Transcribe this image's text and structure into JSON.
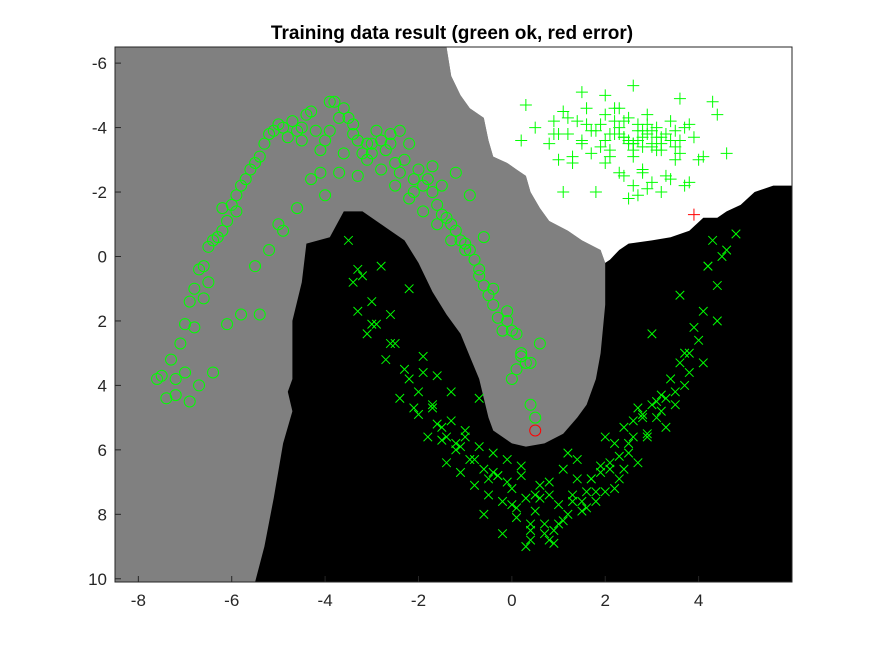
{
  "chart_data": {
    "type": "scatter",
    "title": "Training data result (green ok, red error)",
    "xlabel": "",
    "ylabel": "",
    "xlim": [
      -8.5,
      6
    ],
    "ylim": [
      10.1,
      -6.5
    ],
    "y_axis_direction": "reversed",
    "xticks": [
      -8,
      -6,
      -4,
      -2,
      0,
      2,
      4
    ],
    "yticks": [
      -6,
      -4,
      -2,
      0,
      2,
      4,
      6,
      8,
      10
    ],
    "xtick_labels": [
      "-8",
      "-6",
      "-4",
      "-2",
      "0",
      "2",
      "4"
    ],
    "ytick_labels": [
      "-6",
      "-4",
      "-2",
      "0",
      "2",
      "4",
      "6",
      "8",
      "10"
    ],
    "grid": false,
    "legend": "none",
    "background_regions": [
      {
        "label": "class circle (gray)",
        "color": "#808080",
        "polygon": [
          [
            -8.5,
            -6.5
          ],
          [
            -1.4,
            -6.5
          ],
          [
            -1.3,
            -5.6
          ],
          [
            -1.1,
            -5.0
          ],
          [
            -0.9,
            -4.6
          ],
          [
            -0.6,
            -4.3
          ],
          [
            -0.5,
            -3.6
          ],
          [
            -0.4,
            -3.1
          ],
          [
            -0.1,
            -2.9
          ],
          [
            0.1,
            -2.7
          ],
          [
            0.3,
            -2.5
          ],
          [
            0.4,
            -2.0
          ],
          [
            0.6,
            -1.5
          ],
          [
            0.8,
            -1.1
          ],
          [
            1.2,
            -0.8
          ],
          [
            1.5,
            -0.5
          ],
          [
            1.9,
            -0.2
          ],
          [
            2.0,
            0.2
          ],
          [
            2.0,
            1.5
          ],
          [
            1.9,
            3.0
          ],
          [
            1.8,
            3.8
          ],
          [
            1.6,
            4.6
          ],
          [
            1.4,
            5.0
          ],
          [
            1.1,
            5.5
          ],
          [
            0.7,
            5.8
          ],
          [
            0.3,
            5.9
          ],
          [
            0,
            5.8
          ],
          [
            -0.4,
            5.4
          ],
          [
            -0.5,
            5.0
          ],
          [
            -0.6,
            4.4
          ],
          [
            -0.7,
            3.8
          ],
          [
            -0.9,
            3.1
          ],
          [
            -1.1,
            2.4
          ],
          [
            -1.4,
            1.8
          ],
          [
            -1.7,
            1.1
          ],
          [
            -2.0,
            0.2
          ],
          [
            -2.3,
            -0.5
          ],
          [
            -2.7,
            -0.9
          ],
          [
            -3.2,
            -1.4
          ],
          [
            -3.6,
            -1.4
          ],
          [
            -3.9,
            -0.6
          ],
          [
            -4.4,
            -0.4
          ],
          [
            -4.5,
            0.8
          ],
          [
            -4.7,
            2.0
          ],
          [
            -4.7,
            3.8
          ],
          [
            -4.8,
            4.2
          ],
          [
            -4.7,
            4.8
          ],
          [
            -4.9,
            5.8
          ],
          [
            -5.1,
            7.5
          ],
          [
            -5.3,
            9.0
          ],
          [
            -5.5,
            10.1
          ],
          [
            -8.5,
            10.1
          ]
        ]
      },
      {
        "label": "class plus (white)",
        "color": "#ffffff",
        "polygon": [
          [
            -1.4,
            -6.5
          ],
          [
            6,
            -6.5
          ],
          [
            6,
            -2.2
          ],
          [
            5.6,
            -2.2
          ],
          [
            5.2,
            -2.0
          ],
          [
            4.9,
            -1.6
          ],
          [
            4.6,
            -1.4
          ],
          [
            4.4,
            -1.2
          ],
          [
            4.1,
            -1.2
          ],
          [
            3.8,
            -0.8
          ],
          [
            3.4,
            -0.6
          ],
          [
            3.0,
            -0.5
          ],
          [
            2.5,
            -0.4
          ],
          [
            2.3,
            -0.2
          ],
          [
            2.1,
            0.1
          ],
          [
            2.0,
            0.2
          ],
          [
            1.9,
            -0.2
          ],
          [
            1.5,
            -0.5
          ],
          [
            1.2,
            -0.8
          ],
          [
            0.8,
            -1.1
          ],
          [
            0.6,
            -1.5
          ],
          [
            0.4,
            -2.0
          ],
          [
            0.3,
            -2.5
          ],
          [
            0.1,
            -2.7
          ],
          [
            -0.1,
            -2.9
          ],
          [
            -0.4,
            -3.1
          ],
          [
            -0.5,
            -3.6
          ],
          [
            -0.6,
            -4.3
          ],
          [
            -0.9,
            -4.6
          ],
          [
            -1.1,
            -5.0
          ],
          [
            -1.3,
            -5.6
          ]
        ]
      }
    ],
    "default_region": {
      "label": "class cross (black)",
      "color": "#000000"
    },
    "series": [
      {
        "marker": "circle",
        "color": "#00ff00",
        "x": [
          -7.6,
          -7.5,
          -7.3,
          -7.2,
          -7.1,
          -7.0,
          -7.0,
          -6.9,
          -6.8,
          -6.8,
          -6.7,
          -6.6,
          -6.5,
          -6.5,
          -6.4,
          -6.3,
          -6.2,
          -6.1,
          -6.0,
          -5.9,
          -5.8,
          -5.7,
          -5.6,
          -5.5,
          -5.4,
          -5.3,
          -5.2,
          -5.1,
          -5.0,
          -4.9,
          -4.8,
          -4.7,
          -4.6,
          -4.5,
          -4.4,
          -4.3,
          -4.2,
          -4.1,
          -4.0,
          -3.9,
          -3.8,
          -3.7,
          -3.6,
          -3.5,
          -3.4,
          -3.3,
          -3.2,
          -3.1,
          -3.0,
          -2.9,
          -2.8,
          -2.7,
          -2.6,
          -2.5,
          -2.4,
          -2.3,
          -2.2,
          -2.1,
          -2.0,
          -1.9,
          -1.8,
          -1.7,
          -1.6,
          -1.5,
          -1.4,
          -1.3,
          -1.2,
          -1.1,
          -1.0,
          -0.9,
          -0.8,
          -0.7,
          -0.6,
          -0.5,
          -0.4,
          -0.3,
          -0.2,
          -0.1,
          0.0,
          0.1,
          0.2,
          0.3,
          0.4,
          0.6,
          -7.2,
          -6.9,
          -6.7,
          -6.4,
          -6.1,
          -5.8,
          -5.5,
          -5.2,
          -4.9,
          -4.6,
          -4.3,
          -4.0,
          -3.7,
          -3.4,
          -3.1,
          -2.8,
          -2.5,
          -2.2,
          -1.9,
          -1.6,
          -1.3,
          -1.0,
          -0.7,
          -0.4,
          -0.1,
          0.2,
          -5.4,
          -4.1,
          -3.0,
          -2.4,
          -1.5,
          -0.9,
          0.0,
          0.4,
          -6.2,
          -5.0,
          -3.6,
          -2.6,
          -1.7,
          -0.6,
          -7.4,
          -6.6,
          -5.9,
          -4.5,
          -3.9,
          -3.3,
          -2.1,
          -1.2,
          0.1,
          0.5
        ],
        "y": [
          3.8,
          3.7,
          3.2,
          3.8,
          2.7,
          3.6,
          2.1,
          1.4,
          1.0,
          2.2,
          0.4,
          0.3,
          0.8,
          -0.3,
          -0.5,
          -0.6,
          -0.8,
          -1.1,
          -1.6,
          -1.9,
          -2.2,
          -2.4,
          -2.7,
          -2.9,
          -3.1,
          -3.5,
          -3.8,
          -3.9,
          -4.1,
          -4.0,
          -3.7,
          -4.2,
          -3.9,
          -4.0,
          -4.4,
          -4.5,
          -3.9,
          -3.3,
          -3.6,
          -3.9,
          -4.8,
          -4.3,
          -4.6,
          -4.3,
          -4.1,
          -3.6,
          -3.2,
          -3.5,
          -3.2,
          -3.9,
          -3.6,
          -3.3,
          -3.5,
          -2.9,
          -2.6,
          -3.0,
          -3.5,
          -2.4,
          -2.7,
          -2.2,
          -2.4,
          -2.0,
          -1.6,
          -1.3,
          -1.2,
          -1.0,
          -0.8,
          -0.5,
          -0.4,
          -0.2,
          0.1,
          0.6,
          0.9,
          1.2,
          1.5,
          1.9,
          2.3,
          2.0,
          2.3,
          2.4,
          3.0,
          3.3,
          3.3,
          2.7,
          4.3,
          4.5,
          4.0,
          3.6,
          2.1,
          1.8,
          0.3,
          -0.2,
          -0.8,
          -1.5,
          -2.4,
          -1.9,
          -2.6,
          -3.8,
          -3.0,
          -2.7,
          -2.2,
          -1.8,
          -1.4,
          -1.0,
          -0.5,
          -0.2,
          0.4,
          1.0,
          1.7,
          3.1,
          1.8,
          -2.6,
          -3.5,
          -3.9,
          -2.2,
          -1.9,
          3.8,
          4.6,
          -1.5,
          -1.0,
          -3.2,
          -3.8,
          -2.8,
          -0.6,
          4.4,
          1.3,
          -1.4,
          -3.6,
          -4.8,
          -2.5,
          -2.0,
          -2.6,
          3.5,
          5.0
        ],
        "status": "ok"
      },
      {
        "marker": "circle",
        "color": "#ff0000",
        "x": [
          0.5
        ],
        "y": [
          5.4
        ],
        "status": "error"
      },
      {
        "marker": "plus",
        "color": "#00ff00",
        "x": [
          0.2,
          0.3,
          0.5,
          0.8,
          0.9,
          1.0,
          1.1,
          1.2,
          1.3,
          1.4,
          1.5,
          1.6,
          1.7,
          1.8,
          1.9,
          2.0,
          2.1,
          2.2,
          2.3,
          2.4,
          2.5,
          2.6,
          2.7,
          2.8,
          2.9,
          3.0,
          3.1,
          3.2,
          3.3,
          3.4,
          3.5,
          3.6,
          3.7,
          3.8,
          3.9,
          4.1,
          4.4,
          4.6,
          1.0,
          1.3,
          1.6,
          1.9,
          2.2,
          2.5,
          2.8,
          3.1,
          3.4,
          3.7,
          4.0,
          1.2,
          1.5,
          1.8,
          2.1,
          2.4,
          2.7,
          3.0,
          3.3,
          3.6,
          2.0,
          2.3,
          2.6,
          2.9,
          3.2,
          3.5,
          2.2,
          2.5,
          2.8,
          3.1,
          1.7,
          2.0,
          2.3,
          2.6,
          2.9,
          3.2,
          3.5,
          2.1,
          2.4,
          2.7,
          3.0,
          2.6,
          2.8,
          2.4,
          2.6,
          3.0,
          3.2,
          2.5,
          2.7,
          2.9,
          1.1,
          3.8,
          4.3,
          2.0,
          3.4,
          1.5,
          2.8,
          3.6,
          0.9,
          2.3,
          2.6
        ],
        "y": [
          -3.6,
          -4.7,
          -4.0,
          -3.5,
          -4.2,
          -3.0,
          -4.5,
          -3.8,
          -2.9,
          -4.2,
          -3.6,
          -4.6,
          -3.2,
          -2.0,
          -4.1,
          -2.9,
          -3.8,
          -4.6,
          -2.6,
          -3.7,
          -4.3,
          -3.1,
          -3.9,
          -2.7,
          -4.4,
          -3.5,
          -4.0,
          -3.3,
          -2.5,
          -4.2,
          -3.0,
          -3.6,
          -2.2,
          -4.1,
          -3.7,
          -3.1,
          -4.4,
          -3.2,
          -3.8,
          -3.1,
          -4.1,
          -3.4,
          -3.8,
          -3.5,
          -3.9,
          -3.3,
          -3.6,
          -4.0,
          -3.0,
          -4.3,
          -3.5,
          -3.9,
          -3.1,
          -3.7,
          -4.1,
          -3.4,
          -3.8,
          -3.2,
          -3.6,
          -4.0,
          -3.3,
          -3.8,
          -3.5,
          -3.9,
          -4.2,
          -3.6,
          -3.4,
          -3.7,
          -3.9,
          -4.4,
          -3.8,
          -3.5,
          -4.1,
          -3.7,
          -3.4,
          -3.3,
          -4.2,
          -3.6,
          -3.9,
          -3.5,
          -3.7,
          -2.5,
          -2.2,
          -2.3,
          -2.0,
          -1.8,
          -1.9,
          -2.1,
          -2.0,
          -2.3,
          -4.8,
          -5.0,
          -2.4,
          -5.1,
          -2.6,
          -4.9,
          -3.8,
          -4.6,
          -5.3
        ],
        "status": "ok"
      },
      {
        "marker": "plus",
        "color": "#ff0000",
        "x": [
          3.9
        ],
        "y": [
          -1.3
        ],
        "status": "error"
      },
      {
        "marker": "cross",
        "color": "#00ff00",
        "x": [
          -3.5,
          -3.4,
          -3.3,
          -3.2,
          -3.1,
          -3.0,
          -2.9,
          -2.8,
          -2.7,
          -2.6,
          -2.5,
          -2.4,
          -2.3,
          -2.2,
          -2.1,
          -2.0,
          -1.9,
          -1.8,
          -1.7,
          -1.6,
          -1.5,
          -1.4,
          -1.3,
          -1.2,
          -1.1,
          -1.0,
          -0.9,
          -0.8,
          -0.7,
          -0.6,
          -0.5,
          -0.4,
          -0.3,
          -0.2,
          -0.1,
          0.0,
          0.1,
          0.2,
          0.3,
          0.4,
          0.5,
          0.6,
          0.7,
          0.8,
          0.9,
          1.0,
          1.1,
          1.2,
          1.3,
          1.4,
          1.5,
          1.6,
          1.7,
          1.8,
          1.9,
          2.0,
          2.1,
          2.2,
          2.3,
          2.4,
          2.5,
          2.6,
          2.7,
          2.8,
          2.9,
          3.0,
          3.1,
          3.2,
          3.3,
          3.4,
          3.5,
          3.6,
          3.7,
          3.8,
          3.9,
          4.0,
          4.1,
          4.2,
          4.3,
          4.4,
          4.5,
          4.6,
          4.8,
          -3.3,
          -3.0,
          -2.6,
          -2.2,
          -1.9,
          -1.6,
          -1.3,
          -1.0,
          -0.7,
          -0.4,
          -0.1,
          0.2,
          0.5,
          0.8,
          1.1,
          1.4,
          1.7,
          2.0,
          2.3,
          2.6,
          2.9,
          3.2,
          3.5,
          3.8,
          4.1,
          4.4,
          -1.7,
          -1.1,
          -0.5,
          0.1,
          0.7,
          1.3,
          1.9,
          2.5,
          3.1,
          3.7,
          -1.4,
          -0.8,
          -0.2,
          0.4,
          1.0,
          1.6,
          2.2,
          2.8,
          -2.0,
          -1.2,
          -0.3,
          0.6,
          1.5,
          2.4,
          3.3,
          4.2,
          0.0,
          0.9,
          1.8,
          2.7,
          3.6,
          -1.5,
          -0.6,
          0.3,
          1.2,
          2.1,
          3.0,
          0.4,
          0.8
        ],
        "y": [
          -0.5,
          0.8,
          1.7,
          0.6,
          2.4,
          1.4,
          2.1,
          0.3,
          3.2,
          1.8,
          2.7,
          4.4,
          3.5,
          3.8,
          4.7,
          4.9,
          3.6,
          5.6,
          4.6,
          5.2,
          5.7,
          6.4,
          5.1,
          6.0,
          6.7,
          5.6,
          6.3,
          7.1,
          5.9,
          6.6,
          7.4,
          6.1,
          6.8,
          7.6,
          6.3,
          7.2,
          8.1,
          6.8,
          7.5,
          8.5,
          7.9,
          7.1,
          8.3,
          7.4,
          8.9,
          7.7,
          6.6,
          8.0,
          7.4,
          6.9,
          7.9,
          7.3,
          6.9,
          7.6,
          6.5,
          7.3,
          6.6,
          5.8,
          6.9,
          5.3,
          6.1,
          5.6,
          6.4,
          4.9,
          5.5,
          4.6,
          5.0,
          4.3,
          5.3,
          3.8,
          4.6,
          3.3,
          4.0,
          3.0,
          2.2,
          2.6,
          1.7,
          0.3,
          -0.5,
          0.9,
          0.0,
          -0.2,
          -0.7,
          0.4,
          2.1,
          2.7,
          1.0,
          3.1,
          3.7,
          4.2,
          5.4,
          4.4,
          6.7,
          7.0,
          6.5,
          7.4,
          7.0,
          8.2,
          6.3,
          6.9,
          5.6,
          6.2,
          5.1,
          5.6,
          4.8,
          4.2,
          3.6,
          3.3,
          2.0,
          4.7,
          5.9,
          6.9,
          7.8,
          8.6,
          7.6,
          6.7,
          5.8,
          4.5,
          3.0,
          5.6,
          6.3,
          8.6,
          8.8,
          8.3,
          7.8,
          7.2,
          5.0,
          4.2,
          5.8,
          6.8,
          7.5,
          7.6,
          6.6,
          4.4,
          0.3,
          7.7,
          8.5,
          7.3,
          4.7,
          1.2,
          5.3,
          8.0,
          9.0,
          6.1,
          6.4,
          2.4,
          8.3,
          8.8
        ],
        "status": "ok"
      }
    ]
  }
}
